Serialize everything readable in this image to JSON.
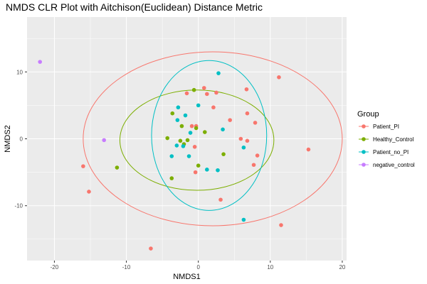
{
  "chart_data": {
    "type": "scatter",
    "title": "NMDS CLR Plot with Aitchison(Euclidean) Distance Metric",
    "xlabel": "NMDS1",
    "ylabel": "NMDS2",
    "xlim": [
      -23.8,
      20.6
    ],
    "ylim": [
      -18.2,
      18.2
    ],
    "x_ticks": [
      -20,
      -10,
      0,
      10,
      20
    ],
    "x_tick_labels": [
      "-20",
      "-10",
      "0",
      "10",
      "20"
    ],
    "y_ticks": [
      -10,
      0,
      10
    ],
    "y_tick_labels": [
      "-10",
      "0",
      "10"
    ],
    "grid": true,
    "background": "#EBEBEB",
    "legend": {
      "title": "Group",
      "position": "right",
      "entries": [
        "Patient_PI",
        "Healthy_Control",
        "Patient_no_PI",
        "negative_control"
      ]
    },
    "series": [
      {
        "name": "Patient_PI",
        "color": "#F8766D",
        "points": [
          [
            11.2,
            9.2
          ],
          [
            6.7,
            7.4
          ],
          [
            0.8,
            7.6
          ],
          [
            -1.6,
            6.8
          ],
          [
            1.2,
            6.7
          ],
          [
            2.5,
            6.9
          ],
          [
            2.1,
            4.7
          ],
          [
            6.8,
            3.8
          ],
          [
            4.4,
            2.8
          ],
          [
            7.9,
            2.4
          ],
          [
            -0.9,
            1.9
          ],
          [
            -0.3,
            1.9
          ],
          [
            5.9,
            0.0
          ],
          [
            6.8,
            -0.3
          ],
          [
            -0.5,
            -1.2
          ],
          [
            8.2,
            -2.5
          ],
          [
            15.3,
            -1.6
          ],
          [
            7.7,
            -3.9
          ],
          [
            -0.4,
            -5.0
          ],
          [
            -16.0,
            -4.1
          ],
          [
            -15.2,
            -7.9
          ],
          [
            3.1,
            -9.1
          ],
          [
            11.5,
            -12.9
          ],
          [
            -6.6,
            -16.4
          ]
        ],
        "ellipse": {
          "center": [
            2.0,
            0.0
          ],
          "semi_axes": [
            18.0,
            13.0
          ],
          "rotation_deg": 0
        }
      },
      {
        "name": "Healthy_Control",
        "color": "#7CAE00",
        "points": [
          [
            -0.6,
            7.3
          ],
          [
            -3.6,
            3.8
          ],
          [
            -2.3,
            1.9
          ],
          [
            -0.3,
            1.6
          ],
          [
            0.9,
            1.0
          ],
          [
            -4.3,
            0.1
          ],
          [
            -2.5,
            -0.3
          ],
          [
            -1.5,
            -0.2
          ],
          [
            -2.0,
            -0.8
          ],
          [
            3.5,
            -2.3
          ],
          [
            -11.3,
            -4.3
          ],
          [
            0.0,
            -4.0
          ],
          [
            -3.7,
            -5.9
          ]
        ],
        "ellipse": {
          "center": [
            -0.2,
            -0.2
          ],
          "semi_axes": [
            10.7,
            7.5
          ],
          "rotation_deg": 0
        }
      },
      {
        "name": "Patient_no_PI",
        "color": "#00BFC4",
        "points": [
          [
            2.8,
            9.8
          ],
          [
            0.0,
            5.0
          ],
          [
            -2.8,
            4.7
          ],
          [
            -1.8,
            3.5
          ],
          [
            -2.9,
            2.8
          ],
          [
            3.4,
            1.4
          ],
          [
            -1.1,
            0.9
          ],
          [
            -3.0,
            -1.0
          ],
          [
            -2.1,
            -1.1
          ],
          [
            6.3,
            -1.3
          ],
          [
            -3.7,
            -2.6
          ],
          [
            -1.3,
            -2.6
          ],
          [
            1.2,
            -4.6
          ],
          [
            2.7,
            -4.7
          ],
          [
            6.3,
            -12.1
          ]
        ],
        "ellipse": {
          "center": [
            1.5,
            0.5
          ],
          "semi_axes": [
            8.0,
            11.2
          ],
          "rotation_deg": 0
        }
      },
      {
        "name": "negative_control",
        "color": "#C77CFF",
        "points": [
          [
            -22.0,
            11.5
          ],
          [
            -13.1,
            -0.2
          ]
        ]
      }
    ]
  }
}
